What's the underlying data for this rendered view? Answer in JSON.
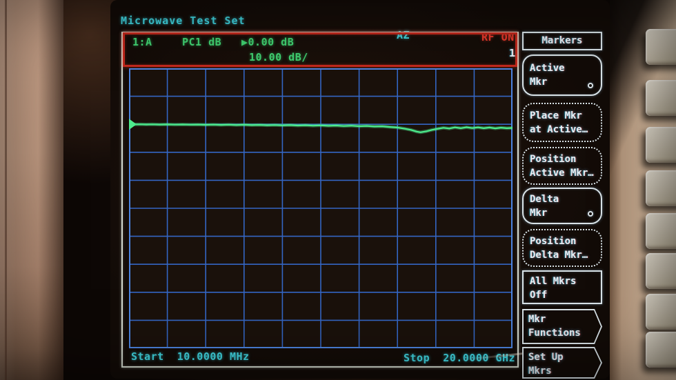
{
  "screen": {
    "title": "Microwave Test Set",
    "status_center": "AZ",
    "status_right": "RF ON",
    "annotation": {
      "channel": "1:A",
      "mode": "PC1 dB",
      "ref_marker": "▶",
      "ref_value": "0.00 dB",
      "scale": "10.00 dB/"
    },
    "trace_number": "1",
    "start_label": "Start",
    "start_value": "10.0000 MHz",
    "stop_label": "Stop",
    "stop_value": "20.0000 GHz"
  },
  "menu": {
    "title": "Markers",
    "buttons": [
      {
        "line1": "Active",
        "line2": "Mkr"
      },
      {
        "line1": "Place Mkr",
        "line2": "at Active…"
      },
      {
        "line1": "Position",
        "line2": "Active Mkr…"
      },
      {
        "line1": "Delta",
        "line2": "Mkr"
      },
      {
        "line1": "Position",
        "line2": "Delta Mkr…"
      },
      {
        "line1": "All Mkrs",
        "line2": "Off"
      },
      {
        "line1": "Mkr",
        "line2": "Functions"
      },
      {
        "line1": "Set Up",
        "line2": "Mkrs"
      }
    ]
  },
  "colors": {
    "grid_line": "#3466c4",
    "grid_border": "#4d85e2",
    "trace": "#4ded8d",
    "annotation_box": "#c2281c",
    "frame": "#d4dacf",
    "cyan_text": "#41d7e2",
    "red_text": "#e8392c",
    "green_text": "#41d171"
  },
  "chart_data": {
    "type": "line",
    "title": "Microwave Test Set",
    "xlabel_start": "Start 10.0000 MHz",
    "xlabel_stop": "Stop 20.0000 GHz",
    "x_range_hz": [
      10000000,
      20000000000
    ],
    "ref_level_db": 0.0,
    "scale_db_per_div": 10.0,
    "ref_position_divs_from_top": 2,
    "grid_divisions": {
      "x": 10,
      "y": 10
    },
    "legend": "channel 1:A, PC1 dB, RF ON",
    "series": [
      {
        "name": "1:A",
        "points_x_fraction_db": [
          [
            0.0,
            0.0
          ],
          [
            0.015,
            -0.04
          ],
          [
            0.03,
            0.01
          ],
          [
            0.045,
            -0.07
          ],
          [
            0.06,
            -0.02
          ],
          [
            0.08,
            -0.1
          ],
          [
            0.1,
            -0.05
          ],
          [
            0.12,
            -0.13
          ],
          [
            0.14,
            -0.07
          ],
          [
            0.16,
            -0.16
          ],
          [
            0.18,
            -0.1
          ],
          [
            0.2,
            -0.2
          ],
          [
            0.22,
            -0.12
          ],
          [
            0.24,
            -0.22
          ],
          [
            0.26,
            -0.15
          ],
          [
            0.28,
            -0.26
          ],
          [
            0.3,
            -0.18
          ],
          [
            0.32,
            -0.3
          ],
          [
            0.34,
            -0.22
          ],
          [
            0.36,
            -0.34
          ],
          [
            0.38,
            -0.26
          ],
          [
            0.4,
            -0.4
          ],
          [
            0.42,
            -0.3
          ],
          [
            0.44,
            -0.45
          ],
          [
            0.46,
            -0.35
          ],
          [
            0.48,
            -0.5
          ],
          [
            0.5,
            -0.4
          ],
          [
            0.52,
            -0.55
          ],
          [
            0.54,
            -0.45
          ],
          [
            0.56,
            -0.62
          ],
          [
            0.58,
            -0.5
          ],
          [
            0.6,
            -0.7
          ],
          [
            0.62,
            -0.6
          ],
          [
            0.64,
            -0.8
          ],
          [
            0.66,
            -0.72
          ],
          [
            0.68,
            -0.95
          ],
          [
            0.7,
            -1.15
          ],
          [
            0.72,
            -1.6
          ],
          [
            0.735,
            -2.0
          ],
          [
            0.75,
            -2.6
          ],
          [
            0.76,
            -2.85
          ],
          [
            0.775,
            -2.5
          ],
          [
            0.79,
            -2.0
          ],
          [
            0.805,
            -1.6
          ],
          [
            0.82,
            -1.25
          ],
          [
            0.835,
            -1.5
          ],
          [
            0.85,
            -1.1
          ],
          [
            0.865,
            -1.4
          ],
          [
            0.88,
            -1.05
          ],
          [
            0.895,
            -1.35
          ],
          [
            0.91,
            -1.1
          ],
          [
            0.925,
            -1.4
          ],
          [
            0.94,
            -1.15
          ],
          [
            0.955,
            -1.45
          ],
          [
            0.97,
            -1.2
          ],
          [
            0.985,
            -1.4
          ],
          [
            1.0,
            -1.3
          ]
        ]
      }
    ]
  }
}
